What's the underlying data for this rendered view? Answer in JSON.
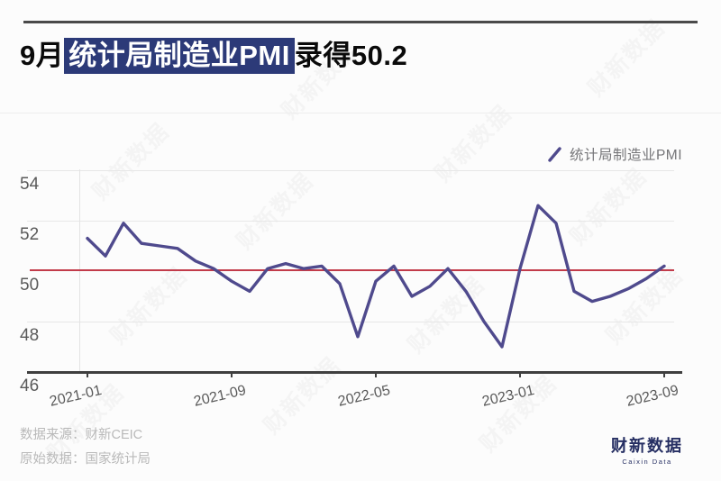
{
  "title": {
    "prefix": "9月",
    "highlight": "统计局制造业PMI",
    "suffix": "录得50.2"
  },
  "legend": {
    "label": "统计局制造业PMI"
  },
  "footer": {
    "line1": "数据来源：财新CEIC",
    "line2": "原始数据：国家统计局"
  },
  "logo": {
    "cn": "财新数据",
    "en": "Caixin Data"
  },
  "watermark": {
    "text": "财新数据"
  },
  "colors": {
    "line": "#4f4a8d",
    "reference_line": "#c23b4a",
    "title_highlight_bg": "#2c3a78",
    "logo_navy": "#262f63"
  },
  "chart_data": {
    "type": "line",
    "title": "9月统计局制造业PMI录得50.2",
    "series": [
      {
        "name": "统计局制造业PMI",
        "values": [
          51.3,
          50.6,
          51.9,
          51.1,
          51.0,
          50.9,
          50.4,
          50.1,
          49.6,
          49.2,
          50.1,
          50.3,
          50.1,
          50.2,
          49.5,
          47.4,
          49.6,
          50.2,
          49.0,
          49.4,
          50.1,
          49.2,
          48.0,
          47.0,
          50.1,
          52.6,
          51.9,
          49.2,
          48.8,
          49.0,
          49.3,
          49.7,
          50.2
        ]
      }
    ],
    "x": [
      "2021-01",
      "2021-02",
      "2021-03",
      "2021-04",
      "2021-05",
      "2021-06",
      "2021-07",
      "2021-08",
      "2021-09",
      "2021-10",
      "2021-11",
      "2021-12",
      "2022-01",
      "2022-02",
      "2022-03",
      "2022-04",
      "2022-05",
      "2022-06",
      "2022-07",
      "2022-08",
      "2022-09",
      "2022-10",
      "2022-11",
      "2022-12",
      "2023-01",
      "2023-02",
      "2023-03",
      "2023-04",
      "2023-05",
      "2023-06",
      "2023-07",
      "2023-08",
      "2023-09"
    ],
    "x_tick_labels": [
      "2021-01",
      "2021-09",
      "2022-05",
      "2023-01",
      "2023-09"
    ],
    "x_tick_month_index": [
      0,
      8,
      16,
      24,
      32
    ],
    "y_ticks": [
      46,
      48,
      50,
      52,
      54
    ],
    "gridline_values": [
      54,
      52,
      48
    ],
    "ylim": [
      46,
      54
    ],
    "reference_line": {
      "value": 50
    },
    "legend_position": "top-right",
    "grid": "horizontal"
  }
}
